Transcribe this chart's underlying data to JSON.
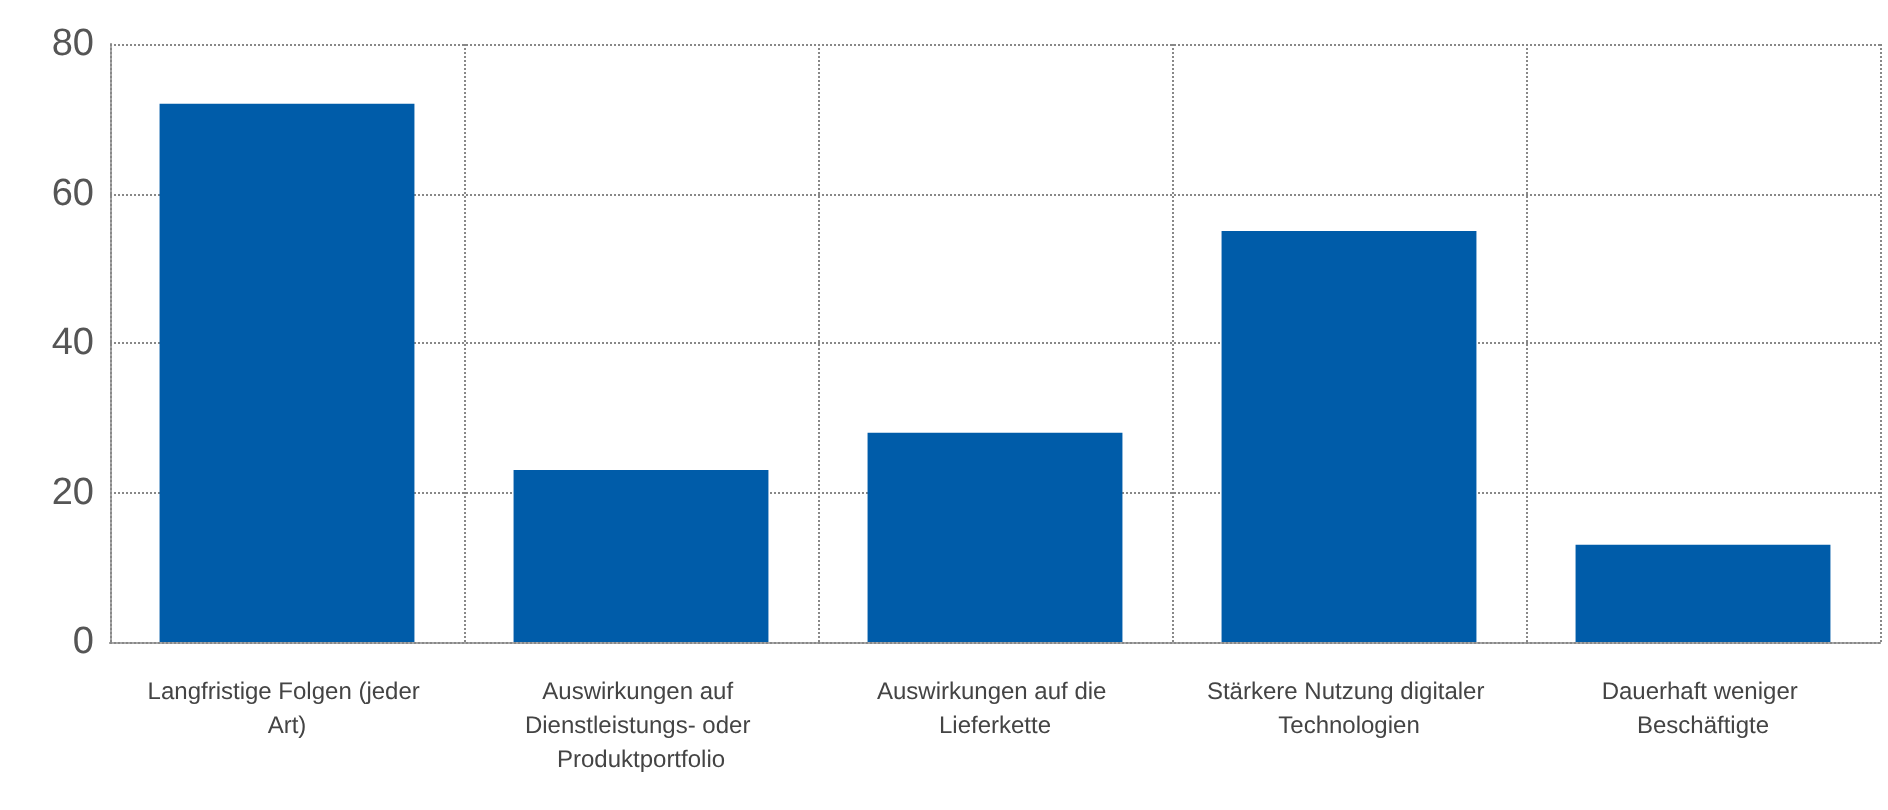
{
  "chart_data": {
    "type": "bar",
    "categories": [
      "Langfristige Folgen (jeder Art)",
      "Auswirkungen auf Dienstleistungs- oder Produktportfolio",
      "Auswirkungen auf die Lieferkette",
      "Stärkere Nutzung digitaler Technologien",
      "Dauerhaft weniger Beschäftigte"
    ],
    "values": [
      72,
      23,
      28,
      55,
      13
    ],
    "color": "#005ca9",
    "ylim": [
      0,
      80
    ],
    "yticks": [
      0,
      20,
      40,
      60,
      80
    ],
    "grid": true
  }
}
